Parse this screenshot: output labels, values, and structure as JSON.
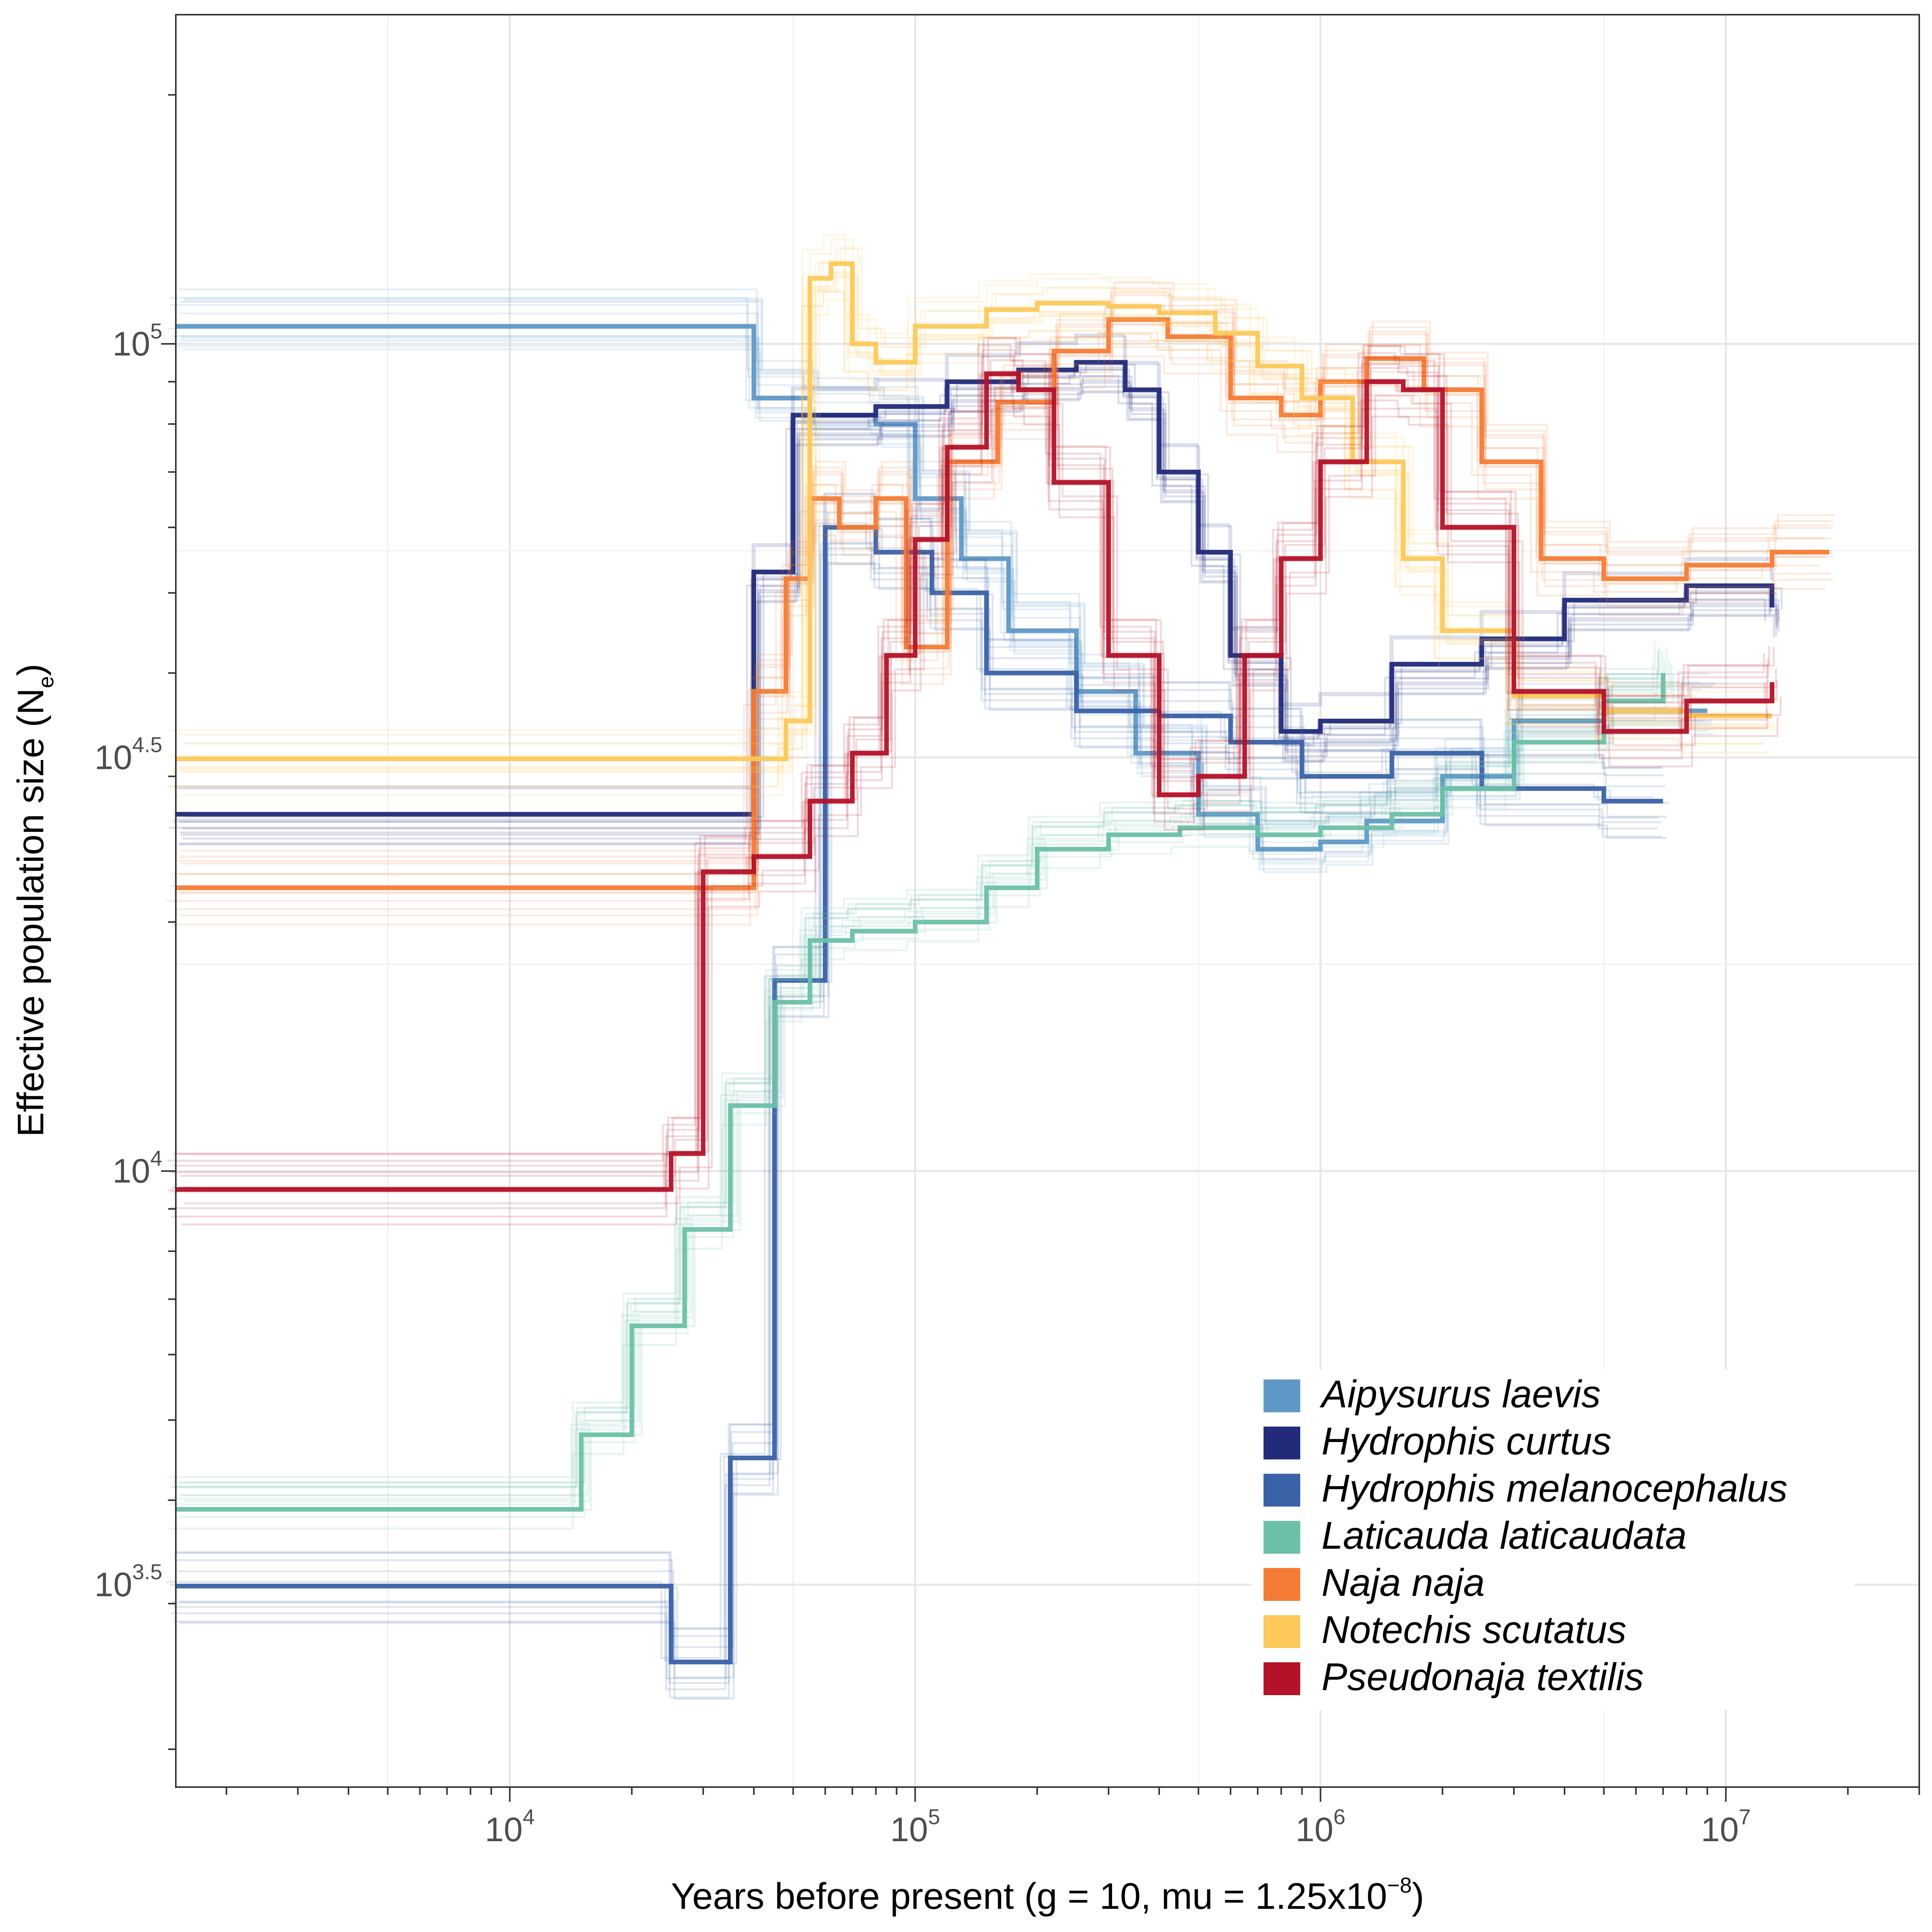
{
  "chart_data": {
    "type": "line",
    "xlabel": {
      "base": "Years before present (g = 10, mu = 1.25x10",
      "sup": "−8",
      "tail": ")"
    },
    "ylabel": {
      "base": "Effective population size (N",
      "sub": "e",
      "tail": ")"
    },
    "x_scale": "log10",
    "y_scale": "log10",
    "xlim": [
      1500,
      30000000
    ],
    "ylim": [
      1800,
      250000
    ],
    "x_ticks": [
      {
        "value": 10000,
        "base": "10",
        "exp": "4"
      },
      {
        "value": 100000,
        "base": "10",
        "exp": "5"
      },
      {
        "value": 1000000,
        "base": "10",
        "exp": "6"
      },
      {
        "value": 10000000,
        "base": "10",
        "exp": "7"
      }
    ],
    "y_ticks": [
      {
        "value": 3162,
        "base": "10",
        "exp": "3.5"
      },
      {
        "value": 10000,
        "base": "10",
        "exp": "4"
      },
      {
        "value": 31623,
        "base": "10",
        "exp": "4.5"
      },
      {
        "value": 100000,
        "base": "10",
        "exp": "5"
      }
    ],
    "grid": true,
    "legend_position": "bottom-right",
    "series": [
      {
        "name": "Aipysurus laevis",
        "color": "#5f98c6",
        "x": [
          1500,
          21000,
          33000,
          40000,
          55000,
          80000,
          100000,
          130000,
          170000,
          250000,
          350000,
          500000,
          700000,
          1000000,
          1300000,
          2000000,
          3000000,
          5000000,
          9000000
        ],
        "y": [
          105000,
          105000,
          105000,
          86000,
          82000,
          80000,
          65000,
          55000,
          45000,
          38000,
          32000,
          27000,
          24500,
          25000,
          26500,
          30000,
          35000,
          36000,
          36000
        ]
      },
      {
        "name": "Hydrophis curtus",
        "color": "#222a7a",
        "x": [
          1500,
          25000,
          40000,
          50000,
          80000,
          120000,
          180000,
          250000,
          330000,
          400000,
          500000,
          600000,
          800000,
          1000000,
          1500000,
          2500000,
          4000000,
          8000000,
          13000000
        ],
        "y": [
          27000,
          27000,
          53000,
          82000,
          84000,
          90000,
          93000,
          95000,
          88000,
          70000,
          56000,
          42000,
          34000,
          35000,
          41000,
          44000,
          49000,
          51000,
          48000
        ]
      },
      {
        "name": "Hydrophis melanocephalus",
        "color": "#3a62a7",
        "x": [
          1500,
          16000,
          25000,
          35000,
          45000,
          60000,
          80000,
          110000,
          150000,
          250000,
          400000,
          600000,
          900000,
          1500000,
          2500000,
          5000000,
          7000000
        ],
        "y": [
          3150,
          3150,
          2550,
          4500,
          17000,
          60000,
          56000,
          50000,
          40000,
          36000,
          35500,
          33000,
          30000,
          32000,
          29000,
          28000,
          28000
        ]
      },
      {
        "name": "Laticauda laticaudata",
        "color": "#6cc0a7",
        "x": [
          1500,
          9500,
          15000,
          20000,
          27000,
          35000,
          45000,
          55000,
          70000,
          100000,
          150000,
          200000,
          300000,
          450000,
          700000,
          1000000,
          1500000,
          2000000,
          3000000,
          5000000,
          7000000
        ],
        "y": [
          3900,
          3900,
          4800,
          6500,
          8500,
          12000,
          16000,
          19000,
          19500,
          20000,
          22000,
          24500,
          25500,
          26000,
          25500,
          26000,
          27000,
          29000,
          33000,
          37000,
          40000
        ]
      },
      {
        "name": "Naja naja",
        "color": "#f47c36",
        "x": [
          1500,
          28000,
          40000,
          48000,
          55000,
          65000,
          80000,
          95000,
          120000,
          160000,
          220000,
          300000,
          420000,
          600000,
          800000,
          1000000,
          1300000,
          1800000,
          2500000,
          3500000,
          5000000,
          8000000,
          13000000,
          18000000
        ],
        "y": [
          22000,
          22000,
          38000,
          52000,
          65000,
          60000,
          65000,
          43000,
          72000,
          85000,
          98000,
          107000,
          102000,
          86000,
          82000,
          90000,
          96000,
          88000,
          72000,
          55000,
          52000,
          54000,
          56000,
          56000
        ]
      },
      {
        "name": "Notechis scutatus",
        "color": "#fcc95a",
        "x": [
          1500,
          35000,
          48000,
          55000,
          62000,
          70000,
          80000,
          100000,
          150000,
          200000,
          300000,
          400000,
          550000,
          700000,
          900000,
          1200000,
          1600000,
          2000000,
          3000000,
          5000000,
          8000000,
          13000000
        ],
        "y": [
          31500,
          31500,
          35000,
          120000,
          125000,
          100000,
          95000,
          105000,
          110000,
          112000,
          111000,
          109000,
          103000,
          94000,
          86000,
          72000,
          55000,
          45000,
          37500,
          36000,
          35500,
          35500
        ]
      },
      {
        "name": "Pseudonaja textilis",
        "color": "#b31228",
        "x": [
          1500,
          19000,
          25000,
          30000,
          40000,
          55000,
          70000,
          85000,
          100000,
          120000,
          150000,
          180000,
          220000,
          300000,
          400000,
          500000,
          650000,
          800000,
          1000000,
          1300000,
          1600000,
          2000000,
          3000000,
          5000000,
          8000000,
          13000000
        ],
        "y": [
          9500,
          9500,
          10500,
          23000,
          24000,
          28000,
          32000,
          42000,
          58000,
          75000,
          92000,
          88000,
          68000,
          42000,
          28500,
          30000,
          42000,
          55000,
          72000,
          90000,
          88000,
          60000,
          38000,
          34000,
          37000,
          39000
        ]
      }
    ]
  }
}
